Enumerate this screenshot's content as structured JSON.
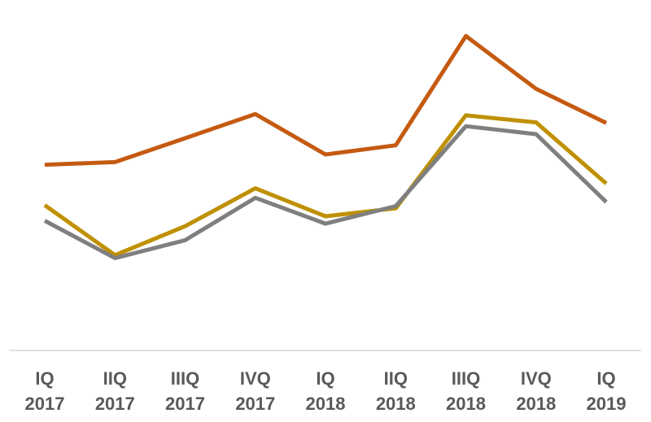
{
  "chart_data": {
    "type": "line",
    "categories": [
      [
        "IQ",
        "2017"
      ],
      [
        "IIQ",
        "2017"
      ],
      [
        "IIIQ",
        "2017"
      ],
      [
        "IVQ",
        "2017"
      ],
      [
        "IQ",
        "2018"
      ],
      [
        "IIQ",
        "2018"
      ],
      [
        "IIIQ",
        "2018"
      ],
      [
        "IVQ",
        "2018"
      ],
      [
        "IQ",
        "2019"
      ]
    ],
    "series": [
      {
        "key": "orange",
        "color": "#C55A11",
        "values": [
          58.3,
          59.1,
          66.6,
          74.2,
          61.5,
          64.4,
          98.7,
          82.1,
          71.4
        ]
      },
      {
        "key": "gold",
        "color": "#BF9000",
        "values": [
          45.6,
          29.9,
          39.0,
          50.9,
          42.1,
          44.6,
          73.8,
          71.6,
          52.4
        ]
      },
      {
        "key": "gray",
        "color": "#7F7F7F",
        "values": [
          40.7,
          29.0,
          34.6,
          47.9,
          39.8,
          45.3,
          70.4,
          67.9,
          46.6
        ]
      }
    ],
    "xlabel": "",
    "ylabel": "",
    "ylim": [
      0,
      110
    ],
    "grid": false,
    "legend": "none"
  }
}
